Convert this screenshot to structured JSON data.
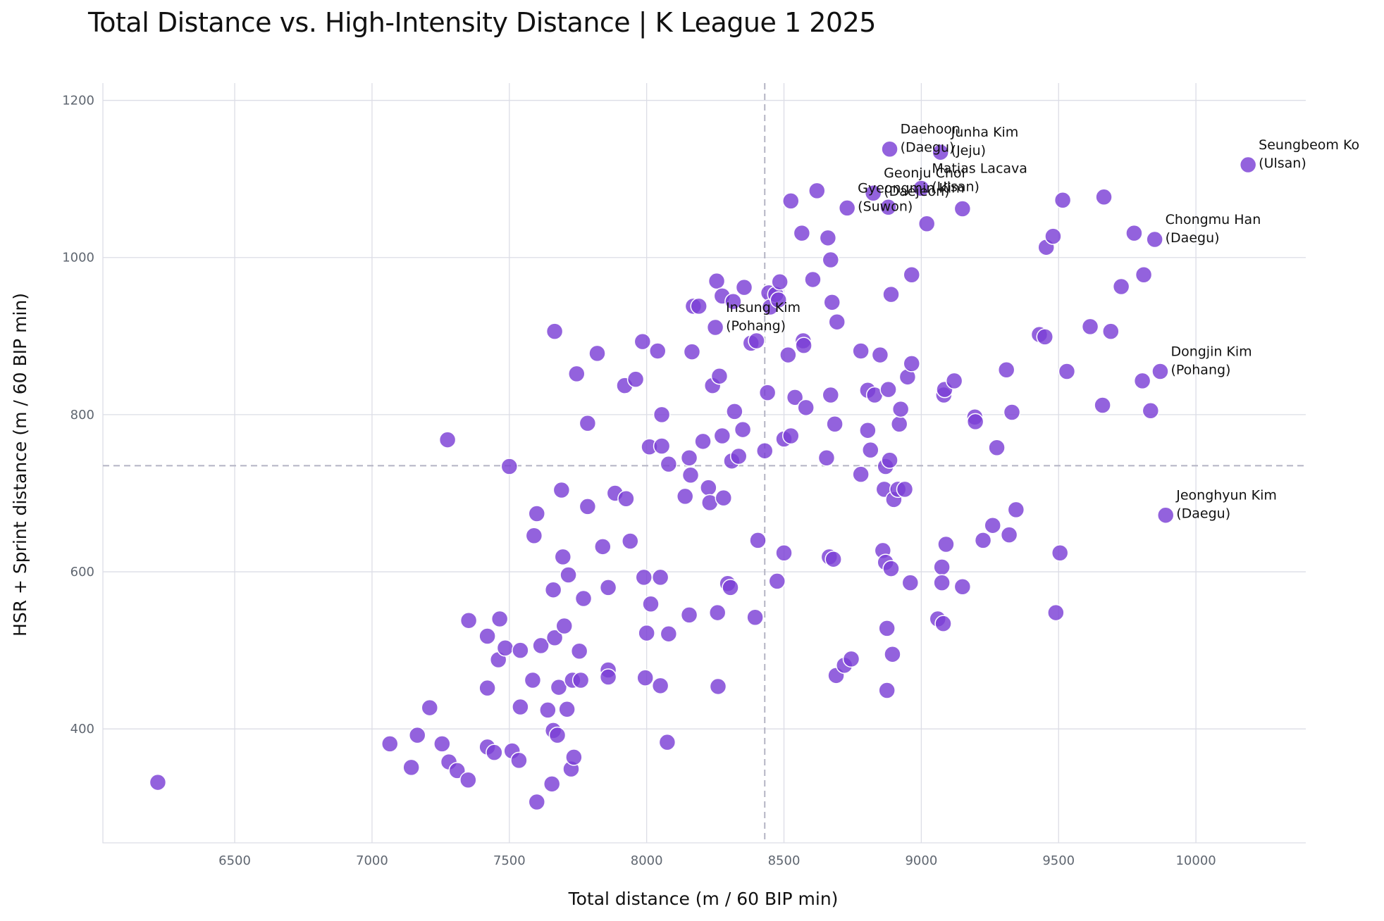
{
  "chart_data": {
    "type": "scatter",
    "title": "Total Distance vs. High-Intensity Distance | K League 1 2025",
    "xlabel": "Total distance (m / 60 BIP min)",
    "ylabel": "HSR + Sprint distance (m / 60 BIP min)",
    "xlim": [
      6020,
      10400
    ],
    "ylim": [
      255,
      1222
    ],
    "xticks": [
      6500,
      7000,
      7500,
      8000,
      8500,
      9000,
      9500,
      10000
    ],
    "yticks": [
      400,
      600,
      800,
      1000,
      1200
    ],
    "grid": true,
    "reference_lines": {
      "x_median": 8430,
      "y_median": 735
    },
    "point_color": "#7b3fd6",
    "points": [
      [
        6220,
        332
      ],
      [
        7065,
        381
      ],
      [
        7143,
        351
      ],
      [
        7165,
        392
      ],
      [
        7210,
        427
      ],
      [
        7255,
        381
      ],
      [
        7280,
        358
      ],
      [
        7310,
        347
      ],
      [
        7350,
        335
      ],
      [
        7352,
        538
      ],
      [
        7275,
        768
      ],
      [
        7420,
        518
      ],
      [
        7420,
        377
      ],
      [
        7420,
        452
      ],
      [
        7445,
        370
      ],
      [
        7460,
        488
      ],
      [
        7465,
        540
      ],
      [
        7485,
        503
      ],
      [
        7500,
        734
      ],
      [
        7510,
        372
      ],
      [
        7535,
        360
      ],
      [
        7540,
        428
      ],
      [
        7540,
        500
      ],
      [
        7585,
        462
      ],
      [
        7590,
        646
      ],
      [
        7600,
        674
      ],
      [
        7600,
        307
      ],
      [
        7615,
        506
      ],
      [
        7640,
        424
      ],
      [
        7655,
        330
      ],
      [
        7660,
        577
      ],
      [
        7660,
        398
      ],
      [
        7665,
        516
      ],
      [
        7665,
        906
      ],
      [
        7675,
        392
      ],
      [
        7680,
        453
      ],
      [
        7690,
        704
      ],
      [
        7695,
        619
      ],
      [
        7700,
        531
      ],
      [
        7710,
        425
      ],
      [
        7715,
        596
      ],
      [
        7725,
        349
      ],
      [
        7730,
        462
      ],
      [
        7735,
        364
      ],
      [
        7745,
        852
      ],
      [
        7755,
        499
      ],
      [
        7760,
        462
      ],
      [
        7770,
        566
      ],
      [
        7785,
        789
      ],
      [
        7785,
        683
      ],
      [
        7820,
        878
      ],
      [
        7840,
        632
      ],
      [
        7860,
        475
      ],
      [
        7860,
        466
      ],
      [
        7860,
        580
      ],
      [
        7885,
        700
      ],
      [
        7920,
        837
      ],
      [
        7925,
        693
      ],
      [
        7940,
        639
      ],
      [
        7960,
        845
      ],
      [
        7985,
        893
      ],
      [
        7990,
        593
      ],
      [
        7995,
        465
      ],
      [
        8000,
        522
      ],
      [
        8010,
        759
      ],
      [
        8015,
        559
      ],
      [
        8040,
        881
      ],
      [
        8050,
        593
      ],
      [
        8050,
        455
      ],
      [
        8055,
        800
      ],
      [
        8055,
        760
      ],
      [
        8075,
        383
      ],
      [
        8080,
        521
      ],
      [
        8080,
        737
      ],
      [
        8140,
        696
      ],
      [
        8155,
        745
      ],
      [
        8155,
        545
      ],
      [
        8160,
        723
      ],
      [
        8165,
        880
      ],
      [
        8170,
        938
      ],
      [
        8190,
        938
      ],
      [
        8205,
        766
      ],
      [
        8225,
        707
      ],
      [
        8230,
        688
      ],
      [
        8240,
        837
      ],
      [
        8250,
        911
      ],
      [
        8255,
        970
      ],
      [
        8258,
        548
      ],
      [
        8260,
        454
      ],
      [
        8265,
        849
      ],
      [
        8275,
        773
      ],
      [
        8275,
        951
      ],
      [
        8280,
        694
      ],
      [
        8295,
        585
      ],
      [
        8305,
        580
      ],
      [
        8310,
        741
      ],
      [
        8315,
        944
      ],
      [
        8320,
        804
      ],
      [
        8335,
        747
      ],
      [
        8350,
        781
      ],
      [
        8355,
        962
      ],
      [
        8380,
        891
      ],
      [
        8395,
        542
      ],
      [
        8400,
        894
      ],
      [
        8405,
        640
      ],
      [
        8430,
        754
      ],
      [
        8440,
        828
      ],
      [
        8445,
        955
      ],
      [
        8450,
        937
      ],
      [
        8470,
        953
      ],
      [
        8475,
        588
      ],
      [
        8480,
        946
      ],
      [
        8485,
        969
      ],
      [
        8500,
        624
      ],
      [
        8500,
        769
      ],
      [
        8515,
        876
      ],
      [
        8525,
        773
      ],
      [
        8525,
        1072
      ],
      [
        8540,
        822
      ],
      [
        8565,
        1031
      ],
      [
        8570,
        894
      ],
      [
        8572,
        888
      ],
      [
        8580,
        809
      ],
      [
        8605,
        972
      ],
      [
        8620,
        1085
      ],
      [
        8655,
        745
      ],
      [
        8660,
        1025
      ],
      [
        8665,
        619
      ],
      [
        8670,
        825
      ],
      [
        8670,
        997
      ],
      [
        8675,
        943
      ],
      [
        8680,
        616
      ],
      [
        8685,
        788
      ],
      [
        8690,
        468
      ],
      [
        8693,
        918
      ],
      [
        8720,
        481
      ],
      [
        8730,
        1063
      ],
      [
        8745,
        489
      ],
      [
        8780,
        724
      ],
      [
        8780,
        881
      ],
      [
        8805,
        831
      ],
      [
        8805,
        780
      ],
      [
        8815,
        755
      ],
      [
        8825,
        1082
      ],
      [
        8830,
        825
      ],
      [
        8850,
        876
      ],
      [
        8860,
        627
      ],
      [
        8865,
        705
      ],
      [
        8870,
        734
      ],
      [
        8870,
        612
      ],
      [
        8875,
        528
      ],
      [
        8875,
        449
      ],
      [
        8880,
        1064
      ],
      [
        8880,
        832
      ],
      [
        8885,
        742
      ],
      [
        8885,
        1138
      ],
      [
        8890,
        604
      ],
      [
        8890,
        953
      ],
      [
        8895,
        495
      ],
      [
        8900,
        692
      ],
      [
        8915,
        705
      ],
      [
        8920,
        788
      ],
      [
        8925,
        807
      ],
      [
        8940,
        705
      ],
      [
        8950,
        848
      ],
      [
        8960,
        586
      ],
      [
        8965,
        865
      ],
      [
        8965,
        978
      ],
      [
        9000,
        1088
      ],
      [
        9020,
        1043
      ],
      [
        9060,
        540
      ],
      [
        9070,
        1134
      ],
      [
        9075,
        606
      ],
      [
        9075,
        586
      ],
      [
        9080,
        534
      ],
      [
        9082,
        825
      ],
      [
        9085,
        832
      ],
      [
        9090,
        635
      ],
      [
        9120,
        843
      ],
      [
        9150,
        1062
      ],
      [
        9150,
        581
      ],
      [
        9195,
        797
      ],
      [
        9197,
        791
      ],
      [
        9225,
        640
      ],
      [
        9260,
        659
      ],
      [
        9275,
        758
      ],
      [
        9310,
        857
      ],
      [
        9320,
        647
      ],
      [
        9330,
        803
      ],
      [
        9345,
        679
      ],
      [
        9430,
        902
      ],
      [
        9450,
        899
      ],
      [
        9455,
        1013
      ],
      [
        9480,
        1027
      ],
      [
        9490,
        548
      ],
      [
        9505,
        624
      ],
      [
        9515,
        1073
      ],
      [
        9530,
        855
      ],
      [
        9615,
        912
      ],
      [
        9660,
        812
      ],
      [
        9665,
        1077
      ],
      [
        9690,
        906
      ],
      [
        9728,
        963
      ],
      [
        9775,
        1031
      ],
      [
        9805,
        843
      ],
      [
        9810,
        978
      ],
      [
        9835,
        805
      ],
      [
        9850,
        1023
      ],
      [
        9870,
        855
      ],
      [
        9890,
        672
      ],
      [
        10190,
        1118
      ]
    ],
    "annotations": [
      {
        "player": "Seungbeom Ko",
        "team": "(Ulsan)",
        "x": 10190,
        "y": 1118
      },
      {
        "player": "Chongmu Han",
        "team": "(Daegu)",
        "x": 9850,
        "y": 1023
      },
      {
        "player": "Dongjin Kim",
        "team": "(Pohang)",
        "x": 9870,
        "y": 855
      },
      {
        "player": "Jeonghyun Kim",
        "team": "(Daegu)",
        "x": 9890,
        "y": 672
      },
      {
        "player": "Junha Kim",
        "team": "(Jeju)",
        "x": 9070,
        "y": 1134
      },
      {
        "player": "Matias Lacava",
        "team": "(Ulsan)",
        "x": 9000,
        "y": 1088
      },
      {
        "player": "Daehoon",
        "team": "(Daegu)",
        "x": 8885,
        "y": 1138
      },
      {
        "player": "Geonju Choi",
        "team": "(Daejeon)",
        "x": 8825,
        "y": 1082
      },
      {
        "player": "Gyeongmin Kim",
        "team": "(Suwon)",
        "x": 8730,
        "y": 1063
      },
      {
        "player": "Insung Kim",
        "team": "(Pohang)",
        "x": 8250,
        "y": 911
      }
    ]
  }
}
